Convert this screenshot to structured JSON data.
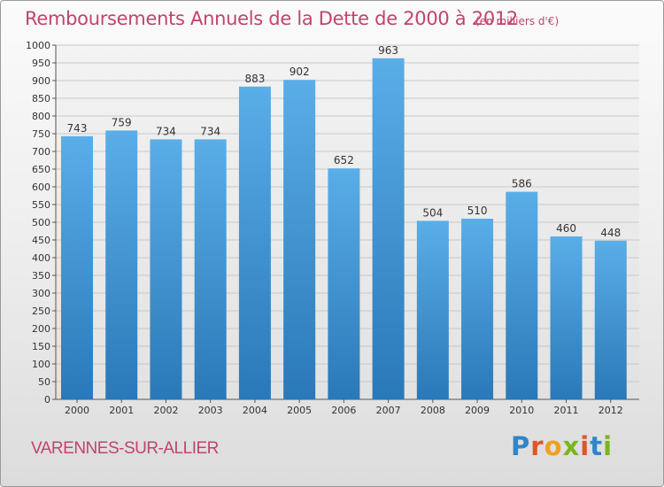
{
  "chart_data": {
    "type": "bar",
    "title": "Remboursements Annuels de la Dette de 2000 à 2012",
    "subtitle": "(en milliers d'€)",
    "categories": [
      "2000",
      "2001",
      "2002",
      "2003",
      "2004",
      "2005",
      "2006",
      "2007",
      "2008",
      "2009",
      "2010",
      "2011",
      "2012"
    ],
    "values": [
      743,
      759,
      734,
      734,
      883,
      902,
      652,
      963,
      504,
      510,
      586,
      460,
      448
    ],
    "ylim": [
      0,
      1000
    ],
    "ytick_step": 50,
    "grid": true,
    "bar_color_top": "#5aaee8",
    "bar_color_bottom": "#2a78b8"
  },
  "footer": {
    "commune": "VARENNES-SUR-ALLIER",
    "logo_letters": [
      "P",
      "r",
      "o",
      "x",
      "i",
      "t",
      "i"
    ],
    "logo_colors": [
      "#2f86c9",
      "#e0552b",
      "#f0a020",
      "#7ab51d",
      "#e0552b",
      "#2f86c9",
      "#7ab51d"
    ]
  }
}
